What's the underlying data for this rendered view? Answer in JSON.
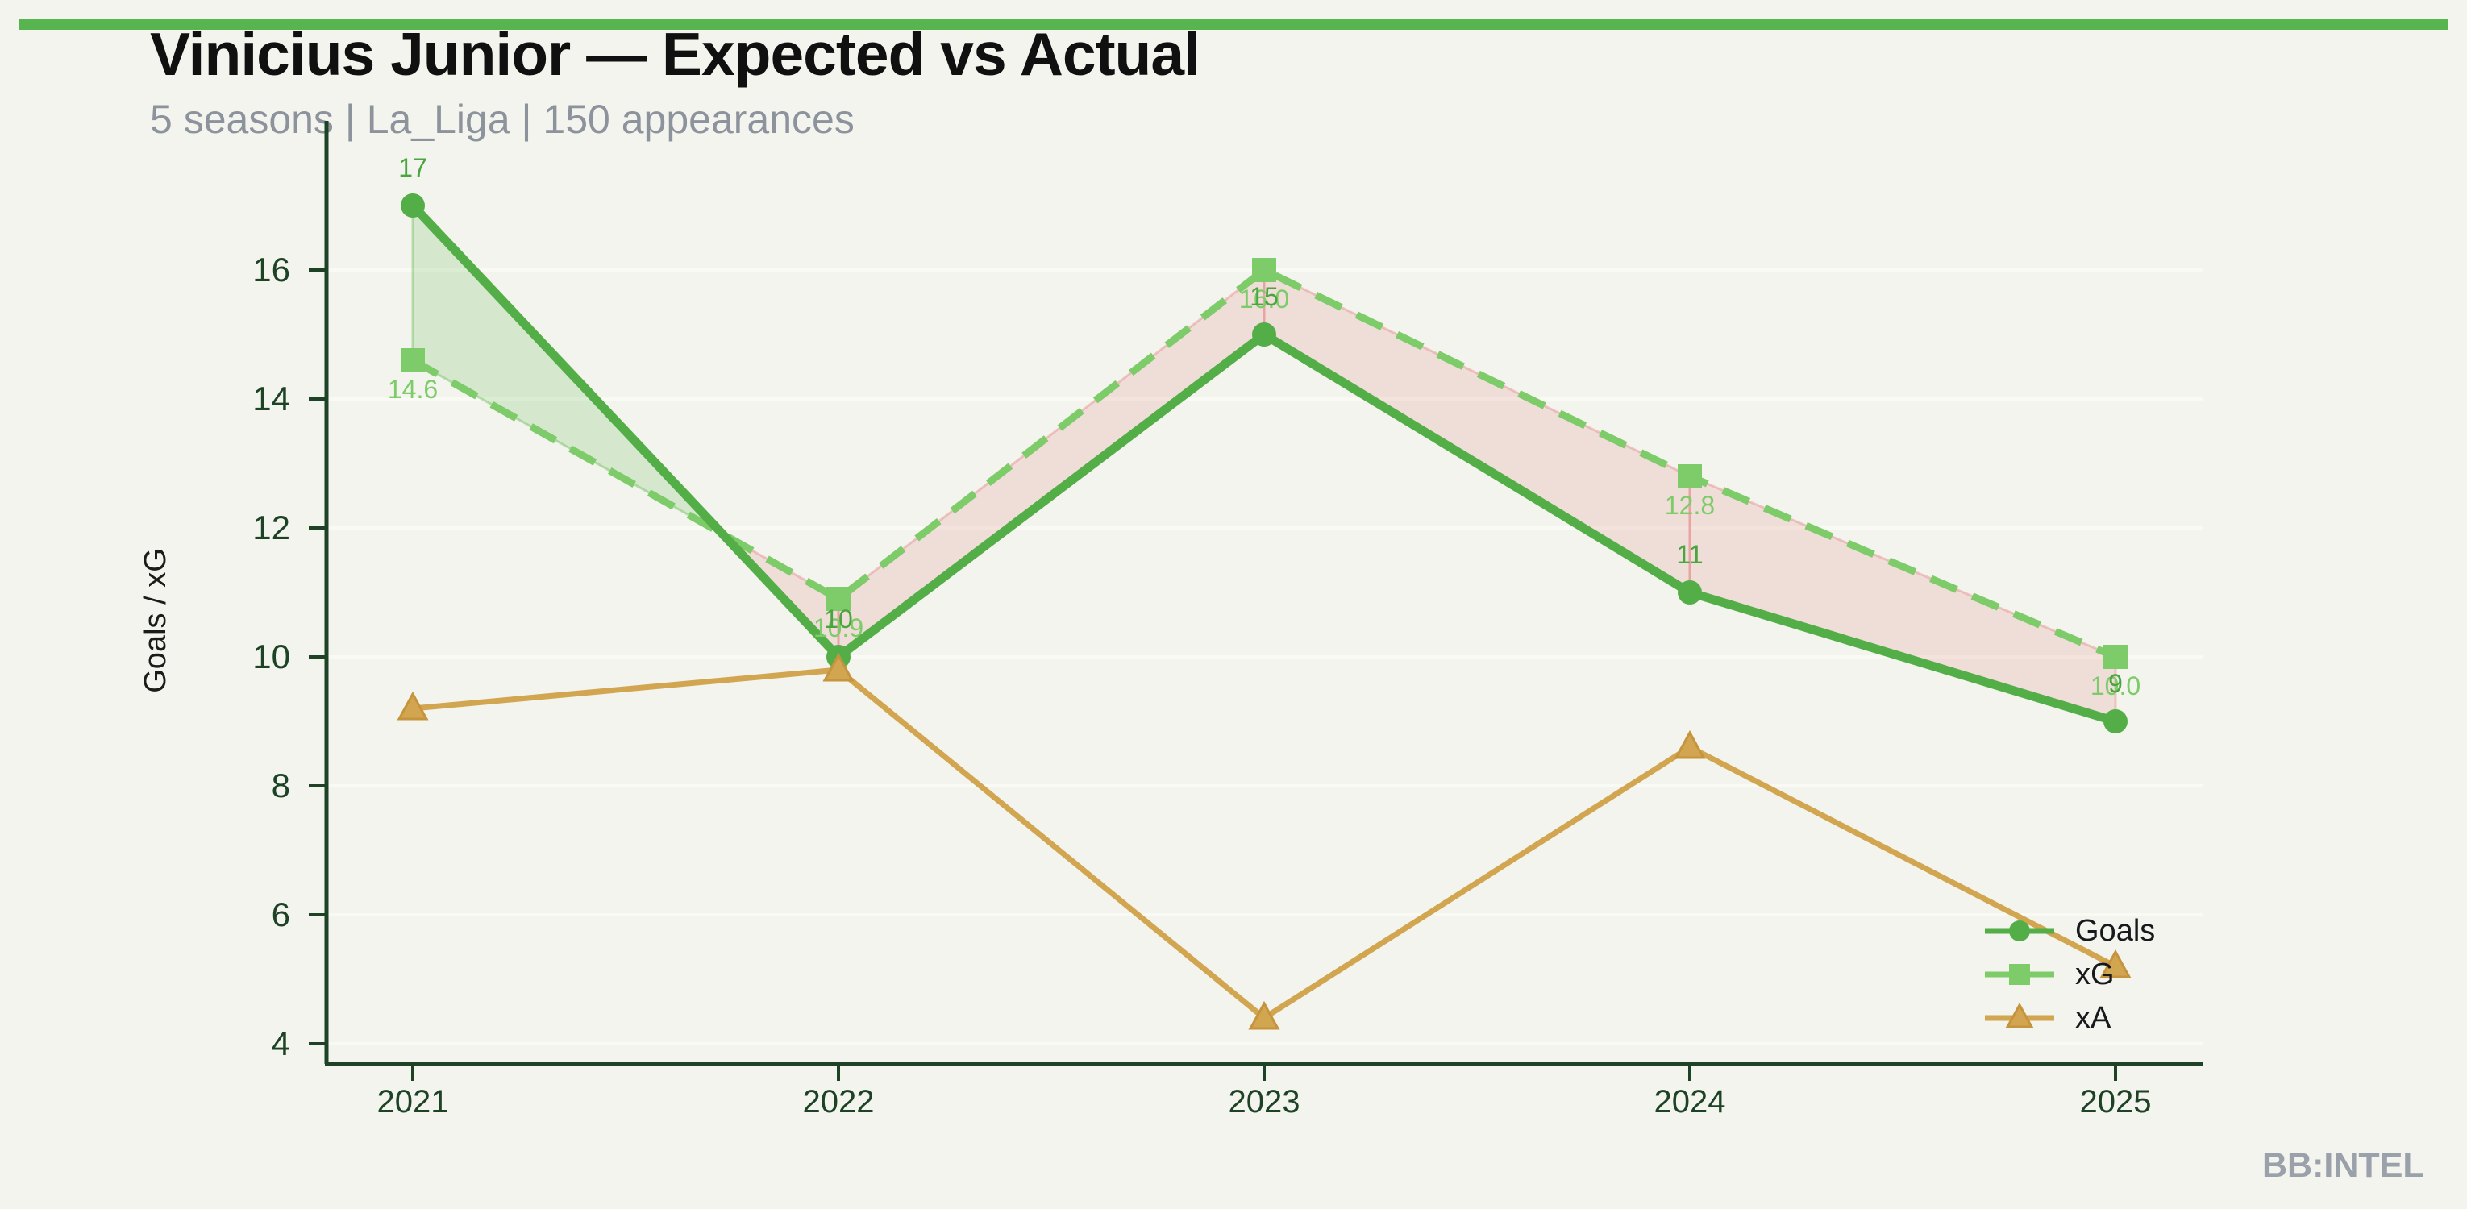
{
  "header": {
    "title": "Vinicius Junior — Expected vs Actual",
    "subtitle": "5 seasons | La_Liga | 150 appearances"
  },
  "watermark": "BB:INTEL",
  "colors": {
    "background": "#f3f4ed",
    "top_bar": "#58b44e",
    "grid": "#f9faf3",
    "axis": "#1d4226",
    "title": "#101010",
    "subtitle": "#8d939d",
    "watermark": "#9ba1ab",
    "ylabel": "#1a1c1a",
    "legend_text": "#17191c",
    "band_overperform": "#6fbe5e",
    "band_underperform": "#e58b8b"
  },
  "chart_data": {
    "type": "line",
    "x": [
      2021,
      2022,
      2023,
      2024,
      2025
    ],
    "series": [
      {
        "name": "Goals",
        "marker": "circle",
        "line": "solid",
        "color": "#54ae47",
        "label_color": "#4aa53f",
        "values": [
          17,
          10,
          15,
          11,
          9
        ],
        "labels": [
          "17",
          "10",
          "15",
          "11",
          "9"
        ],
        "label_side": "above"
      },
      {
        "name": "xG",
        "marker": "square",
        "line": "dashed",
        "color": "#7dcb69",
        "label_color": "#7dcb69",
        "values": [
          14.6,
          10.9,
          16.0,
          12.8,
          10.0
        ],
        "labels": [
          "14.6",
          "10.9",
          "16.0",
          "12.8",
          "10.0"
        ],
        "label_side": "below"
      },
      {
        "name": "xA",
        "marker": "triangle",
        "line": "solid",
        "color": "#d2a550",
        "marker_edge_color": "#c6943c",
        "values": [
          9.2,
          9.8,
          4.4,
          8.6,
          5.2
        ],
        "labels": [],
        "label_side": "none"
      }
    ],
    "ylabel": "Goals / xG",
    "yticks": [
      4,
      6,
      8,
      10,
      12,
      14,
      16
    ],
    "ylim": [
      3.7,
      18.3
    ],
    "grid": "horizontal",
    "legend_position": "lower right",
    "band_note": "shaded band between Goals and xG: green where Goals > xG, red where xG > Goals"
  }
}
